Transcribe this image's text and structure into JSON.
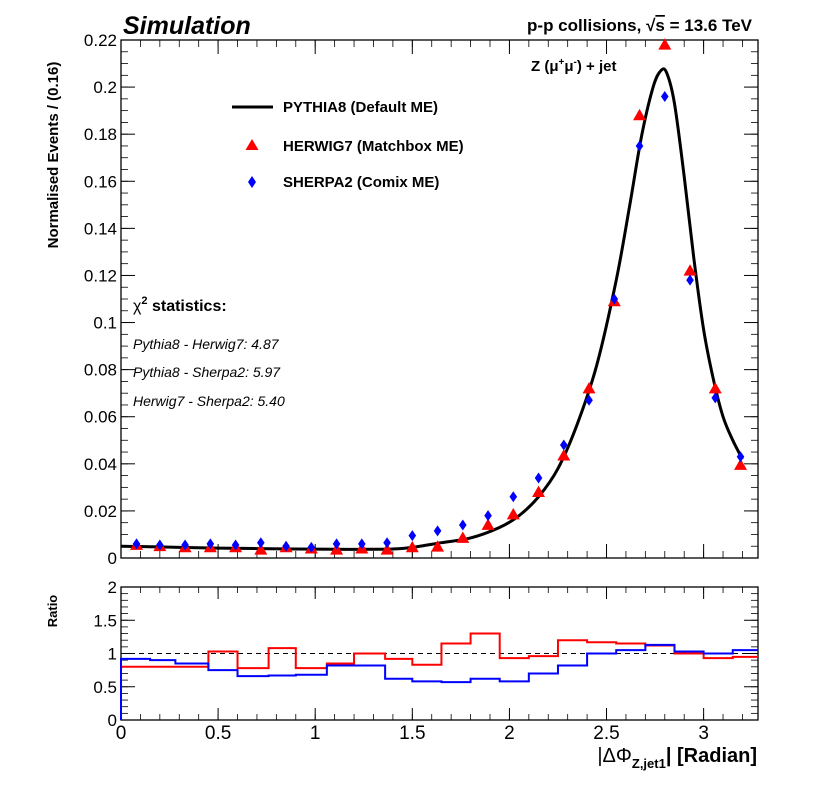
{
  "header": {
    "left": "Simulation",
    "right_prefix": "p-p collisions,",
    "sqrt_symbol": "√",
    "s_symbol": "s",
    "right_suffix": "= 13.6 TeV",
    "process_prefix": "Z (μ",
    "mu_plus_sup": "+",
    "mu_mid": "μ",
    "mu_minus_sup": "-",
    "process_suffix": ") + jet"
  },
  "legend": {
    "items": [
      {
        "label": "PYTHIA8 (Default ME)",
        "marker": "line",
        "color": "#000000"
      },
      {
        "label": "HERWIG7 (Matchbox ME)",
        "marker": "triangle",
        "color": "#ff0000"
      },
      {
        "label": "SHERPA2 (Comix ME)",
        "marker": "diamond",
        "color": "#0000ff"
      }
    ]
  },
  "chi2": {
    "title_chi": "χ",
    "title_sup": "2",
    "title_rest": " statistics:",
    "lines": [
      "Pythia8 - Herwig7: 4.87",
      "Pythia8 - Sherpa2: 5.97",
      "Herwig7 - Sherpa2: 5.40"
    ]
  },
  "axes": {
    "main_ylabel": "Normalised Events / (0.16)",
    "ratio_ylabel": "Ratio",
    "xlabel_main": "|ΔΦ",
    "xlabel_sub": "Z,jet1",
    "xlabel_end": "| [Radian]"
  },
  "chart_data": [
    {
      "type": "line",
      "panel": "main",
      "xlim": [
        0,
        3.28
      ],
      "ylim": [
        0,
        0.22
      ],
      "xticks": [
        0,
        0.5,
        1,
        1.5,
        2,
        2.5,
        3
      ],
      "yticks": [
        0,
        0.02,
        0.04,
        0.06,
        0.08,
        0.1,
        0.12,
        0.14,
        0.16,
        0.18,
        0.2,
        0.22
      ],
      "ytick_labels": [
        "0",
        "0.02",
        "0.04",
        "0.06",
        "0.08",
        "0.1",
        "0.12",
        "0.14",
        "0.16",
        "0.18",
        "0.2",
        "0.22"
      ],
      "series": [
        {
          "name": "PYTHIA8 (Default ME)",
          "style": "curve",
          "color": "#000000",
          "x": [
            0.0,
            0.15,
            0.3,
            0.5,
            0.7,
            0.9,
            1.1,
            1.3,
            1.4,
            1.5,
            1.65,
            1.8,
            1.95,
            2.05,
            2.15,
            2.25,
            2.35,
            2.45,
            2.55,
            2.62,
            2.68,
            2.74,
            2.78,
            2.81,
            2.85,
            2.9,
            2.95,
            3.0,
            3.05,
            3.1,
            3.15,
            3.2
          ],
          "y": [
            0.005,
            0.0048,
            0.0045,
            0.0042,
            0.004,
            0.0038,
            0.0037,
            0.0037,
            0.0038,
            0.0045,
            0.0065,
            0.0085,
            0.013,
            0.018,
            0.026,
            0.038,
            0.057,
            0.082,
            0.118,
            0.15,
            0.179,
            0.2,
            0.207,
            0.206,
            0.193,
            0.162,
            0.127,
            0.097,
            0.076,
            0.06,
            0.05,
            0.042
          ]
        },
        {
          "name": "HERWIG7 (Matchbox ME)",
          "style": "triangle",
          "color": "#ff0000",
          "x": [
            0.08,
            0.2,
            0.33,
            0.46,
            0.59,
            0.72,
            0.85,
            0.98,
            1.11,
            1.24,
            1.37,
            1.5,
            1.63,
            1.76,
            1.89,
            2.02,
            2.15,
            2.28,
            2.41,
            2.54,
            2.67,
            2.8,
            2.93,
            3.06,
            3.19
          ],
          "y": [
            0.0055,
            0.005,
            0.0045,
            0.0045,
            0.0045,
            0.0035,
            0.0045,
            0.004,
            0.0035,
            0.004,
            0.0035,
            0.0045,
            0.0048,
            0.0085,
            0.014,
            0.0185,
            0.028,
            0.0435,
            0.072,
            0.109,
            0.188,
            0.218,
            0.122,
            0.072,
            0.0395
          ]
        },
        {
          "name": "SHERPA2 (Comix ME)",
          "style": "diamond",
          "color": "#0000ff",
          "x": [
            0.08,
            0.2,
            0.33,
            0.46,
            0.59,
            0.72,
            0.85,
            0.98,
            1.11,
            1.24,
            1.37,
            1.5,
            1.63,
            1.76,
            1.89,
            2.02,
            2.15,
            2.28,
            2.41,
            2.54,
            2.67,
            2.8,
            2.93,
            3.06,
            3.19
          ],
          "y": [
            0.006,
            0.0055,
            0.0055,
            0.006,
            0.0055,
            0.0065,
            0.005,
            0.0045,
            0.006,
            0.006,
            0.0065,
            0.0095,
            0.0115,
            0.014,
            0.018,
            0.026,
            0.034,
            0.048,
            0.067,
            0.11,
            0.175,
            0.196,
            0.118,
            0.068,
            0.043
          ]
        }
      ]
    },
    {
      "type": "line",
      "panel": "ratio",
      "xlim": [
        0,
        3.28
      ],
      "ylim": [
        0,
        2
      ],
      "xticks": [
        0,
        0.5,
        1,
        1.5,
        2,
        2.5,
        3
      ],
      "xtick_labels": [
        "0",
        "0.5",
        "1",
        "1.5",
        "2",
        "2.5",
        "3"
      ],
      "yticks": [
        0,
        0.5,
        1,
        1.5,
        2
      ],
      "ytick_labels": [
        "0",
        "0.5",
        "1",
        "1.5",
        "2"
      ],
      "reference_line": 1,
      "bin_edges": [
        0.0,
        0.15,
        0.28,
        0.45,
        0.6,
        0.76,
        0.9,
        1.06,
        1.2,
        1.36,
        1.5,
        1.65,
        1.8,
        1.95,
        2.1,
        2.25,
        2.4,
        2.55,
        2.7,
        2.85,
        3.0,
        3.15,
        3.28
      ],
      "series": [
        {
          "name": "HERWIG7 (Matchbox ME)",
          "color": "#ff0000",
          "values": [
            0.8,
            0.8,
            0.8,
            1.03,
            0.78,
            1.08,
            0.78,
            0.85,
            1.0,
            0.92,
            0.83,
            1.15,
            1.3,
            0.93,
            0.96,
            1.2,
            1.17,
            1.15,
            1.12,
            1.0,
            0.93,
            0.95
          ]
        },
        {
          "name": "SHERPA2 (Comix ME)",
          "color": "#0000ff",
          "values": [
            0.92,
            0.9,
            0.85,
            0.75,
            0.66,
            0.67,
            0.68,
            0.82,
            0.82,
            0.62,
            0.58,
            0.57,
            0.62,
            0.58,
            0.7,
            0.82,
            1.0,
            1.05,
            1.13,
            1.03,
            1.0,
            1.05
          ]
        }
      ]
    }
  ]
}
